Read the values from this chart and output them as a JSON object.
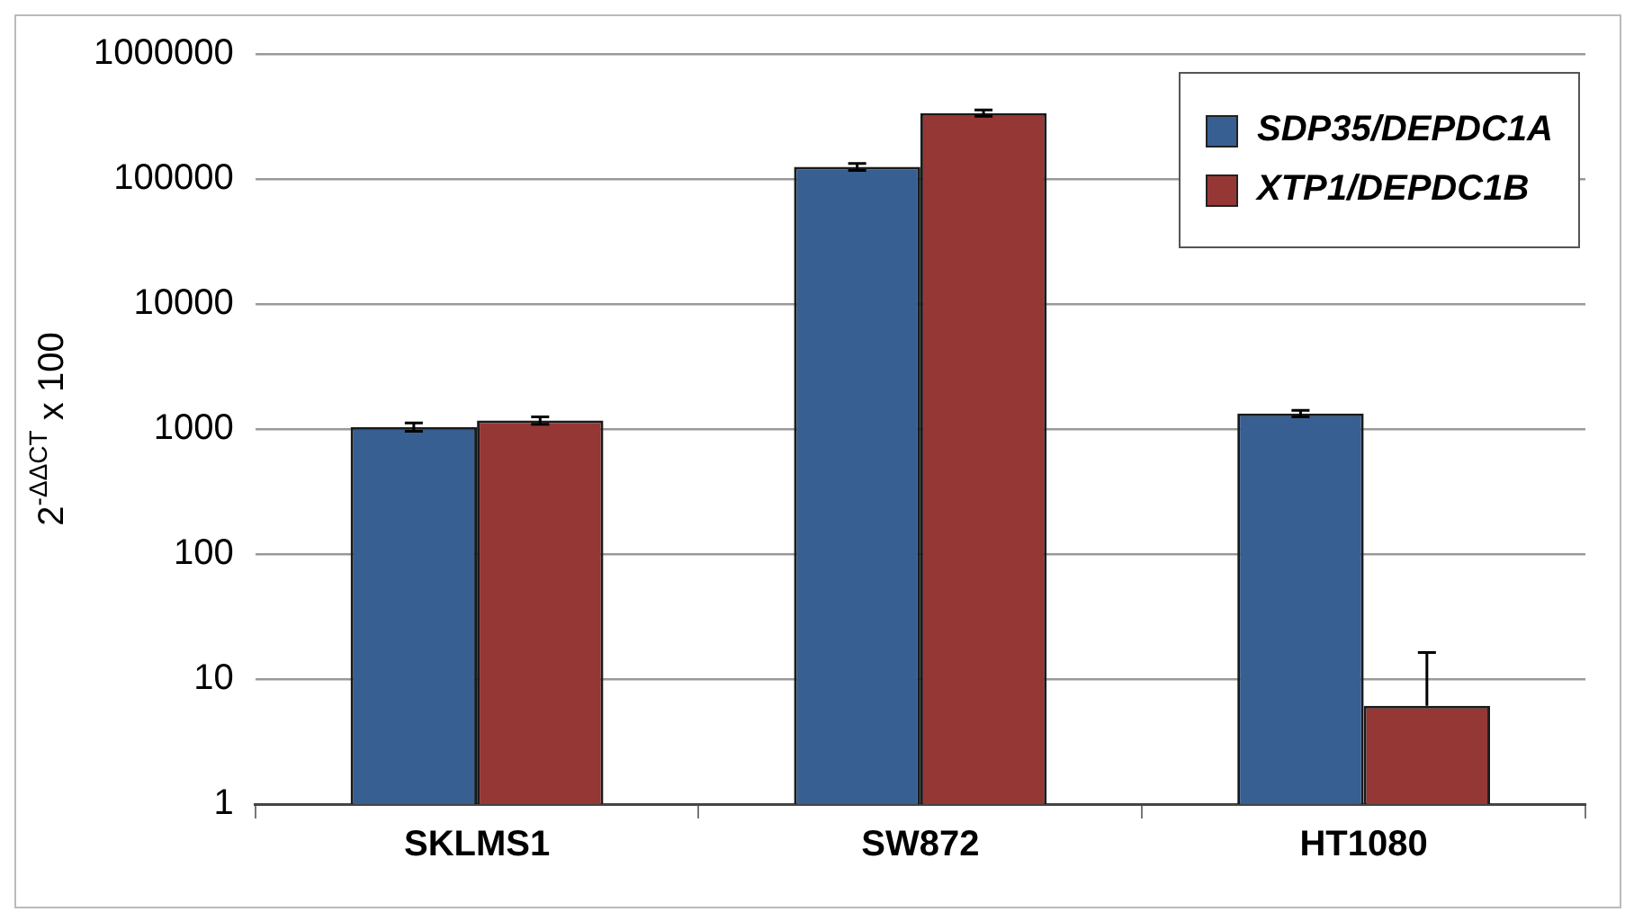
{
  "chart_data": {
    "type": "bar",
    "ylabel": "2$^{-ΔΔCT}$ x 100",
    "categories": [
      "SKLMS1",
      "SW872",
      "HT1080"
    ],
    "series": [
      {
        "name": "SDP35/DEPDC1A",
        "color": "#375f91",
        "values": [
          1040,
          125000,
          1330
        ],
        "errors": [
          80,
          8000,
          80
        ]
      },
      {
        "name": "XTP1/DEPDC1B",
        "color": "#953735",
        "values": [
          1170,
          337000,
          6.1
        ],
        "errors": [
          80,
          20000,
          [
            6.1,
            16.3
          ]
        ]
      }
    ],
    "log": true,
    "ylim": [
      1,
      1000000
    ],
    "yticks": [
      1,
      10,
      100,
      1000,
      10000,
      100000,
      1000000
    ],
    "grid": "y",
    "legend": "top right"
  }
}
